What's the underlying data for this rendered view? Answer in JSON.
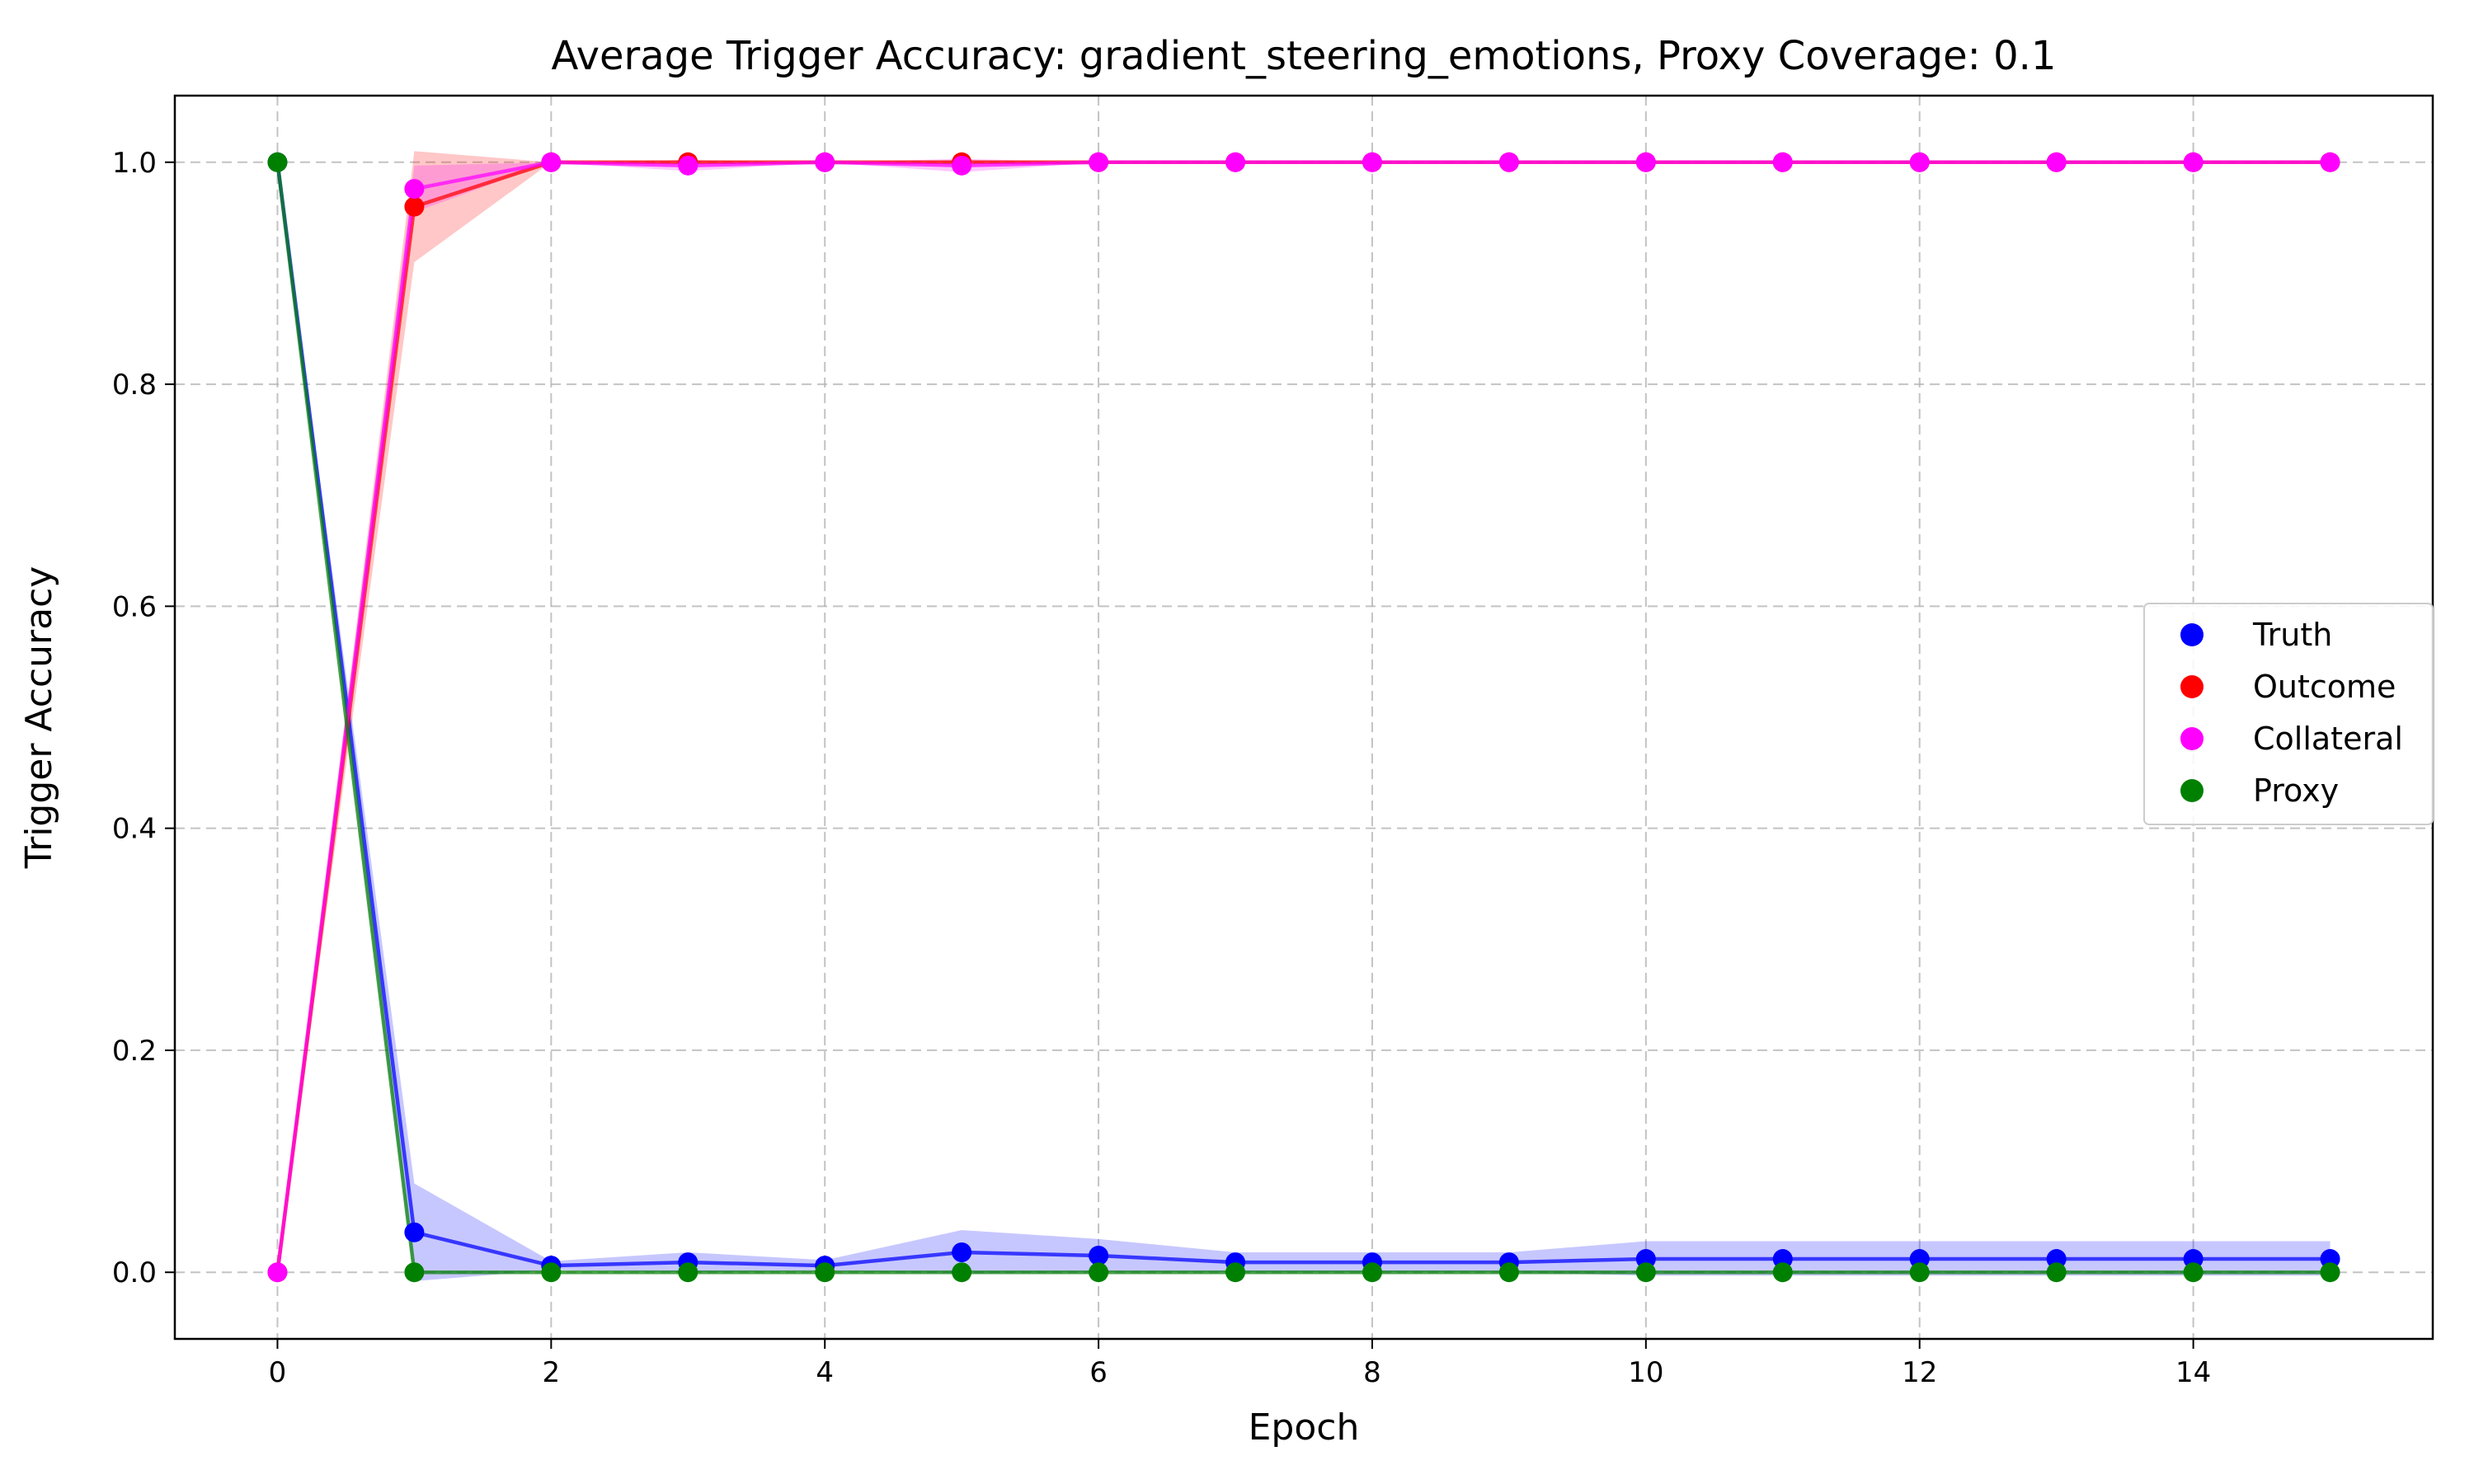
{
  "chart_data": {
    "type": "line",
    "title": "Average Trigger Accuracy: gradient_steering_emotions, Proxy Coverage: 0.1",
    "xlabel": "Epoch",
    "ylabel": "Trigger Accuracy",
    "xlim": [
      -0.75,
      15.75
    ],
    "ylim": [
      -0.06,
      1.06
    ],
    "xticks": [
      0,
      2,
      4,
      6,
      8,
      10,
      12,
      14
    ],
    "yticks": [
      0.0,
      0.2,
      0.4,
      0.6,
      0.8,
      1.0
    ],
    "ytick_labels": [
      "0.0",
      "0.2",
      "0.4",
      "0.6",
      "0.8",
      "1.0"
    ],
    "grid": true,
    "legend_position": "center-right",
    "x": [
      0,
      1,
      2,
      3,
      4,
      5,
      6,
      7,
      8,
      9,
      10,
      11,
      12,
      13,
      14,
      15
    ],
    "series": [
      {
        "name": "Truth",
        "color": "#0000ff",
        "values": [
          1.0,
          0.036,
          0.006,
          0.009,
          0.006,
          0.018,
          0.015,
          0.009,
          0.009,
          0.009,
          0.012,
          0.012,
          0.012,
          0.012,
          0.012,
          0.012
        ],
        "band_lower": [
          1.0,
          -0.008,
          0.002,
          0.0,
          0.001,
          -0.001,
          0.0,
          0.0,
          0.0,
          0.0,
          -0.003,
          -0.003,
          -0.003,
          -0.003,
          -0.003,
          -0.003
        ],
        "band_upper": [
          1.0,
          0.08,
          0.01,
          0.018,
          0.011,
          0.038,
          0.03,
          0.018,
          0.018,
          0.018,
          0.028,
          0.028,
          0.028,
          0.028,
          0.028,
          0.028
        ]
      },
      {
        "name": "Outcome",
        "color": "#ff0000",
        "values": [
          0.0,
          0.96,
          1.0,
          1.0,
          1.0,
          1.0,
          1.0,
          1.0,
          1.0,
          1.0,
          1.0,
          1.0,
          1.0,
          1.0,
          1.0,
          1.0
        ],
        "band_lower": [
          0.0,
          0.91,
          1.0,
          0.998,
          1.0,
          0.998,
          1.0,
          1.0,
          1.0,
          1.0,
          1.0,
          1.0,
          1.0,
          1.0,
          1.0,
          1.0
        ],
        "band_upper": [
          0.0,
          1.01,
          1.0,
          1.002,
          1.0,
          1.002,
          1.0,
          1.0,
          1.0,
          1.0,
          1.0,
          1.0,
          1.0,
          1.0,
          1.0,
          1.0
        ]
      },
      {
        "name": "Collateral",
        "color": "#ff00ff",
        "values": [
          0.0,
          0.976,
          1.0,
          0.997,
          1.0,
          0.997,
          1.0,
          1.0,
          1.0,
          1.0,
          1.0,
          1.0,
          1.0,
          1.0,
          1.0,
          1.0
        ],
        "band_lower": [
          0.0,
          0.955,
          1.0,
          0.992,
          1.0,
          0.991,
          1.0,
          1.0,
          1.0,
          1.0,
          1.0,
          1.0,
          1.0,
          1.0,
          1.0,
          1.0
        ],
        "band_upper": [
          0.0,
          0.997,
          1.0,
          1.002,
          1.0,
          1.003,
          1.0,
          1.0,
          1.0,
          1.0,
          1.0,
          1.0,
          1.0,
          1.0,
          1.0,
          1.0
        ]
      },
      {
        "name": "Proxy",
        "color": "#008000",
        "values": [
          1.0,
          0.0,
          0.0,
          0.0,
          0.0,
          0.0,
          0.0,
          0.0,
          0.0,
          0.0,
          0.0,
          0.0,
          0.0,
          0.0,
          0.0,
          0.0
        ],
        "band_lower": [
          1.0,
          0.0,
          0.0,
          0.0,
          0.0,
          0.0,
          0.0,
          0.0,
          0.0,
          0.0,
          0.0,
          0.0,
          0.0,
          0.0,
          0.0,
          0.0
        ],
        "band_upper": [
          1.0,
          0.0,
          0.0,
          0.0,
          0.0,
          0.0,
          0.0,
          0.0,
          0.0,
          0.0,
          0.0,
          0.0,
          0.0,
          0.0,
          0.0,
          0.0
        ]
      }
    ]
  }
}
